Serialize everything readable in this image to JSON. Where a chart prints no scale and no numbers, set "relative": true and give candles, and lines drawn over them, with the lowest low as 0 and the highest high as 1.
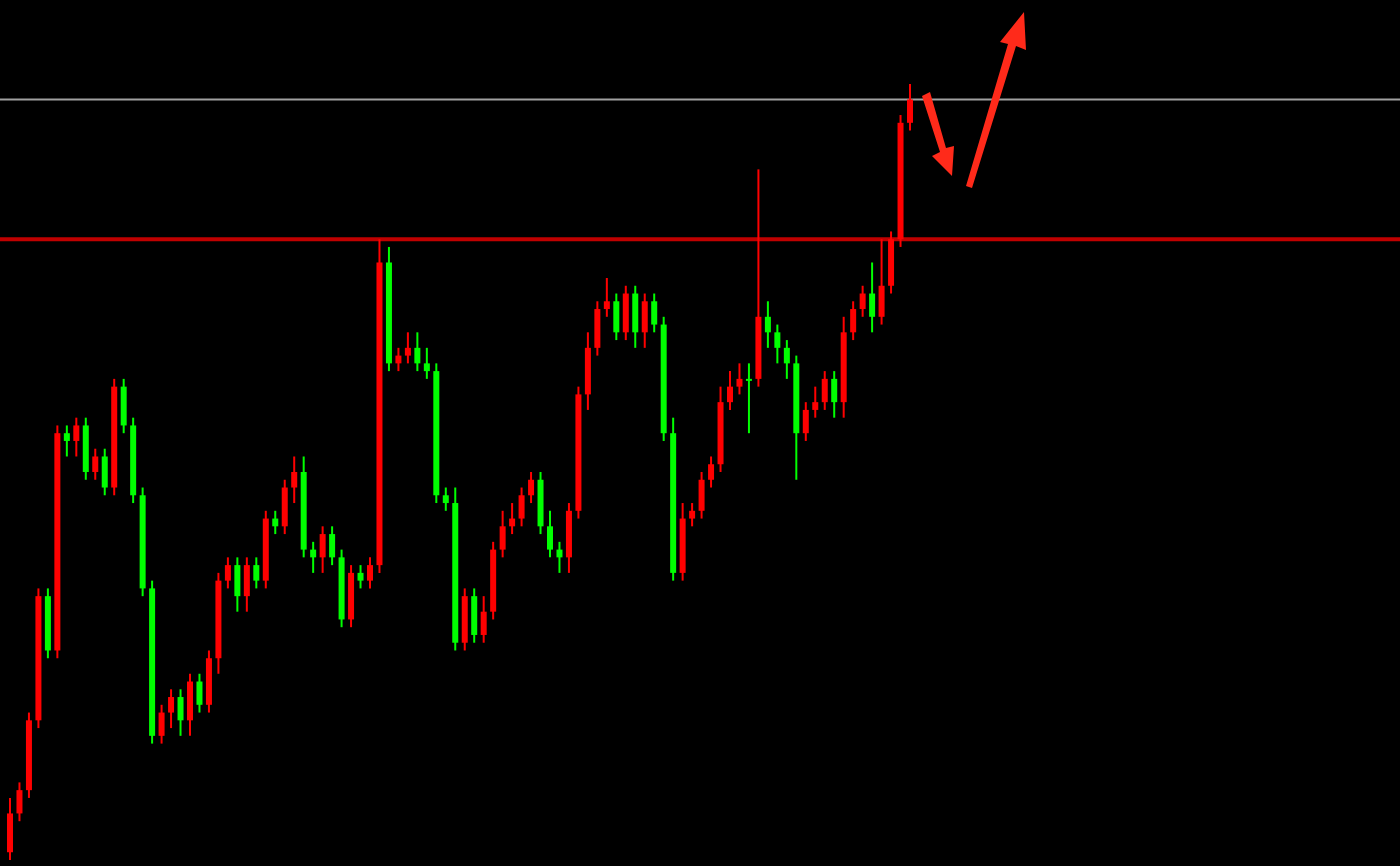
{
  "chart_data": {
    "type": "candlestick",
    "relative": true,
    "categories": [
      null,
      null,
      null,
      null,
      null,
      null,
      null,
      null,
      null,
      null,
      null,
      null,
      null,
      null,
      null,
      null,
      null,
      null,
      null,
      null,
      null,
      null,
      null,
      null,
      null,
      null,
      null,
      null,
      null,
      null,
      null,
      null,
      null,
      null,
      null,
      null,
      null,
      null,
      null,
      null,
      null,
      null,
      null,
      null,
      null,
      null,
      null,
      null,
      null,
      null,
      null,
      null,
      null,
      null,
      null,
      null,
      null,
      null,
      null,
      null,
      null,
      null,
      null,
      null,
      null,
      null,
      null,
      null,
      null,
      null,
      null,
      null,
      null,
      null,
      null,
      null,
      null,
      null,
      null,
      null,
      null,
      null,
      null,
      null,
      null,
      null,
      null,
      null,
      null,
      null,
      null,
      null,
      null,
      null,
      null,
      null
    ],
    "ohlc": [
      [
        0.01,
        0.08,
        0,
        0.06
      ],
      [
        0.06,
        0.1,
        0.05,
        0.09
      ],
      [
        0.09,
        0.19,
        0.08,
        0.18
      ],
      [
        0.18,
        0.35,
        0.17,
        0.34
      ],
      [
        0.34,
        0.35,
        0.26,
        0.27
      ],
      [
        0.27,
        0.56,
        0.26,
        0.55
      ],
      [
        0.55,
        0.56,
        0.52,
        0.54
      ],
      [
        0.54,
        0.57,
        0.52,
        0.56
      ],
      [
        0.56,
        0.57,
        0.49,
        0.5
      ],
      [
        0.5,
        0.53,
        0.49,
        0.52
      ],
      [
        0.52,
        0.53,
        0.47,
        0.48
      ],
      [
        0.48,
        0.62,
        0.47,
        0.61
      ],
      [
        0.61,
        0.62,
        0.55,
        0.56
      ],
      [
        0.56,
        0.57,
        0.46,
        0.47
      ],
      [
        0.47,
        0.48,
        0.34,
        0.35
      ],
      [
        0.35,
        0.36,
        0.15,
        0.16
      ],
      [
        0.16,
        0.2,
        0.15,
        0.19
      ],
      [
        0.19,
        0.22,
        0.17,
        0.21
      ],
      [
        0.21,
        0.22,
        0.16,
        0.18
      ],
      [
        0.18,
        0.24,
        0.16,
        0.23
      ],
      [
        0.23,
        0.24,
        0.19,
        0.2
      ],
      [
        0.2,
        0.27,
        0.19,
        0.26
      ],
      [
        0.26,
        0.37,
        0.24,
        0.36
      ],
      [
        0.36,
        0.39,
        0.35,
        0.38
      ],
      [
        0.38,
        0.39,
        0.32,
        0.34
      ],
      [
        0.34,
        0.39,
        0.32,
        0.38
      ],
      [
        0.38,
        0.39,
        0.35,
        0.36
      ],
      [
        0.36,
        0.45,
        0.35,
        0.44
      ],
      [
        0.44,
        0.45,
        0.42,
        0.43
      ],
      [
        0.43,
        0.49,
        0.42,
        0.48
      ],
      [
        0.48,
        0.52,
        0.46,
        0.5
      ],
      [
        0.5,
        0.52,
        0.39,
        0.4
      ],
      [
        0.4,
        0.41,
        0.37,
        0.39
      ],
      [
        0.39,
        0.43,
        0.37,
        0.42
      ],
      [
        0.42,
        0.43,
        0.38,
        0.39
      ],
      [
        0.39,
        0.4,
        0.3,
        0.31
      ],
      [
        0.31,
        0.38,
        0.3,
        0.37
      ],
      [
        0.37,
        0.38,
        0.35,
        0.36
      ],
      [
        0.36,
        0.39,
        0.35,
        0.38
      ],
      [
        0.38,
        0.8,
        0.37,
        0.77
      ],
      [
        0.77,
        0.79,
        0.63,
        0.64
      ],
      [
        0.64,
        0.66,
        0.63,
        0.65
      ],
      [
        0.65,
        0.68,
        0.64,
        0.66
      ],
      [
        0.66,
        0.68,
        0.63,
        0.64
      ],
      [
        0.64,
        0.66,
        0.62,
        0.63
      ],
      [
        0.63,
        0.64,
        0.46,
        0.47
      ],
      [
        0.47,
        0.48,
        0.45,
        0.46
      ],
      [
        0.46,
        0.48,
        0.27,
        0.28
      ],
      [
        0.28,
        0.35,
        0.27,
        0.34
      ],
      [
        0.34,
        0.35,
        0.28,
        0.29
      ],
      [
        0.29,
        0.34,
        0.28,
        0.32
      ],
      [
        0.32,
        0.41,
        0.31,
        0.4
      ],
      [
        0.4,
        0.45,
        0.39,
        0.43
      ],
      [
        0.43,
        0.46,
        0.42,
        0.44
      ],
      [
        0.44,
        0.48,
        0.43,
        0.47
      ],
      [
        0.47,
        0.5,
        0.46,
        0.49
      ],
      [
        0.49,
        0.5,
        0.42,
        0.43
      ],
      [
        0.43,
        0.45,
        0.39,
        0.4
      ],
      [
        0.4,
        0.41,
        0.37,
        0.39
      ],
      [
        0.39,
        0.46,
        0.37,
        0.45
      ],
      [
        0.45,
        0.61,
        0.44,
        0.6
      ],
      [
        0.6,
        0.68,
        0.58,
        0.66
      ],
      [
        0.66,
        0.72,
        0.65,
        0.71
      ],
      [
        0.71,
        0.75,
        0.7,
        0.72
      ],
      [
        0.72,
        0.73,
        0.67,
        0.68
      ],
      [
        0.68,
        0.74,
        0.67,
        0.73
      ],
      [
        0.73,
        0.74,
        0.66,
        0.68
      ],
      [
        0.68,
        0.73,
        0.66,
        0.72
      ],
      [
        0.72,
        0.73,
        0.68,
        0.69
      ],
      [
        0.69,
        0.7,
        0.54,
        0.55
      ],
      [
        0.55,
        0.57,
        0.36,
        0.37
      ],
      [
        0.37,
        0.46,
        0.36,
        0.44
      ],
      [
        0.44,
        0.46,
        0.43,
        0.45
      ],
      [
        0.45,
        0.5,
        0.44,
        0.49
      ],
      [
        0.49,
        0.52,
        0.48,
        0.51
      ],
      [
        0.51,
        0.61,
        0.5,
        0.59
      ],
      [
        0.59,
        0.63,
        0.58,
        0.61
      ],
      [
        0.61,
        0.64,
        0.6,
        0.62
      ],
      [
        0.62,
        0.64,
        0.55,
        0.62
      ],
      [
        0.62,
        0.89,
        0.61,
        0.7
      ],
      [
        0.7,
        0.72,
        0.66,
        0.68
      ],
      [
        0.68,
        0.69,
        0.64,
        0.66
      ],
      [
        0.66,
        0.67,
        0.62,
        0.64
      ],
      [
        0.64,
        0.65,
        0.49,
        0.55
      ],
      [
        0.55,
        0.59,
        0.54,
        0.58
      ],
      [
        0.58,
        0.61,
        0.57,
        0.59
      ],
      [
        0.59,
        0.63,
        0.58,
        0.62
      ],
      [
        0.62,
        0.63,
        0.57,
        0.59
      ],
      [
        0.59,
        0.7,
        0.57,
        0.68
      ],
      [
        0.68,
        0.72,
        0.67,
        0.71
      ],
      [
        0.71,
        0.74,
        0.7,
        0.73
      ],
      [
        0.73,
        0.77,
        0.68,
        0.7
      ],
      [
        0.7,
        0.8,
        0.69,
        0.74
      ],
      [
        0.74,
        0.81,
        0.73,
        0.8
      ],
      [
        0.8,
        0.96,
        0.79,
        0.95
      ],
      [
        0.95,
        1.0,
        0.94,
        0.98
      ]
    ],
    "colors": [
      "#ff0000",
      "#ff0000",
      "#ff0000",
      "#ff0000",
      "#00ff00",
      "#ff0000",
      "#00ff00",
      "#ff0000",
      "#00ff00",
      "#ff0000",
      "#00ff00",
      "#ff0000",
      "#00ff00",
      "#00ff00",
      "#00ff00",
      "#00ff00",
      "#ff0000",
      "#ff0000",
      "#00ff00",
      "#ff0000",
      "#00ff00",
      "#ff0000",
      "#ff0000",
      "#ff0000",
      "#00ff00",
      "#ff0000",
      "#00ff00",
      "#ff0000",
      "#00ff00",
      "#ff0000",
      "#ff0000",
      "#00ff00",
      "#00ff00",
      "#ff0000",
      "#00ff00",
      "#00ff00",
      "#ff0000",
      "#00ff00",
      "#ff0000",
      "#ff0000",
      "#00ff00",
      "#ff0000",
      "#ff0000",
      "#00ff00",
      "#00ff00",
      "#00ff00",
      "#00ff00",
      "#00ff00",
      "#ff0000",
      "#00ff00",
      "#ff0000",
      "#ff0000",
      "#ff0000",
      "#ff0000",
      "#ff0000",
      "#ff0000",
      "#00ff00",
      "#00ff00",
      "#00ff00",
      "#ff0000",
      "#ff0000",
      "#ff0000",
      "#ff0000",
      "#ff0000",
      "#00ff00",
      "#ff0000",
      "#00ff00",
      "#ff0000",
      "#00ff00",
      "#00ff00",
      "#00ff00",
      "#ff0000",
      "#ff0000",
      "#ff0000",
      "#ff0000",
      "#ff0000",
      "#ff0000",
      "#ff0000",
      "#00ff00",
      "#ff0000",
      "#00ff00",
      "#00ff00",
      "#00ff00",
      "#00ff00",
      "#ff0000",
      "#ff0000",
      "#ff0000",
      "#00ff00",
      "#ff0000",
      "#ff0000",
      "#ff0000",
      "#00ff00",
      "#ff0000",
      "#ff0000",
      "#ff0000",
      "#ff0000"
    ],
    "ref_lines": [
      {
        "axis": "y",
        "value": 0.98,
        "color": "#a0a0a0"
      },
      {
        "axis": "y",
        "value": 0.8,
        "color": "#c00000"
      }
    ]
  }
}
